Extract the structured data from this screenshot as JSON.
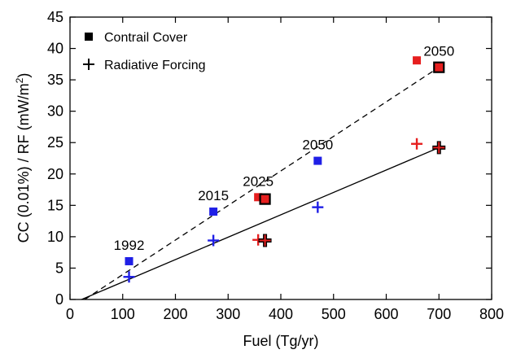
{
  "chart_data": {
    "type": "scatter",
    "xlabel": "Fuel (Tg/yr)",
    "ylabel": "CC (0.01%) / RF (mW/m",
    "ylabel_sup": "2",
    "ylabel_end": ")",
    "xlim": [
      0,
      800
    ],
    "ylim": [
      0,
      45
    ],
    "xticks": [
      0,
      100,
      200,
      300,
      400,
      500,
      600,
      700,
      800
    ],
    "yticks": [
      0,
      5,
      10,
      15,
      20,
      25,
      30,
      35,
      40,
      45
    ],
    "legend": {
      "position": "top-left",
      "entries": [
        {
          "label": "Contrail Cover",
          "marker": "square"
        },
        {
          "label": "Radiative Forcing",
          "marker": "plus"
        }
      ]
    },
    "colors": {
      "blue": "#1f1fe6",
      "red": "#e61f1f",
      "dark": "#000000"
    },
    "series": [
      {
        "marker": "square",
        "color": "blue",
        "points": [
          [
            112,
            6.1
          ],
          [
            272,
            14.0
          ],
          [
            470,
            22.1
          ]
        ]
      },
      {
        "marker": "square",
        "color": "red",
        "points": [
          [
            357,
            16.3
          ],
          [
            658,
            38.1
          ]
        ]
      },
      {
        "marker": "square-outlined",
        "color": "red",
        "points": [
          [
            370,
            16.0
          ],
          [
            700,
            37.0
          ]
        ]
      },
      {
        "marker": "plus",
        "color": "blue",
        "points": [
          [
            112,
            3.6
          ],
          [
            272,
            9.4
          ],
          [
            470,
            14.7
          ]
        ]
      },
      {
        "marker": "plus",
        "color": "red",
        "points": [
          [
            357,
            9.5
          ],
          [
            658,
            24.8
          ]
        ]
      },
      {
        "marker": "plus-outlined",
        "color": "red",
        "points": [
          [
            370,
            9.4
          ],
          [
            700,
            24.2
          ]
        ]
      }
    ],
    "fit_lines": [
      {
        "style": "dashed",
        "points": [
          [
            28,
            0
          ],
          [
            700,
            37.0
          ]
        ]
      },
      {
        "style": "solid",
        "points": [
          [
            22,
            0
          ],
          [
            700,
            24.2
          ]
        ]
      }
    ],
    "annotations": [
      {
        "text": "1992",
        "x": 112,
        "y": 6.1
      },
      {
        "text": "2015",
        "x": 272,
        "y": 14.0
      },
      {
        "text": "2025",
        "x": 357,
        "y": 16.3
      },
      {
        "text": "2050",
        "x": 470,
        "y": 22.1
      },
      {
        "text": "2050",
        "x": 700,
        "y": 37.0
      }
    ]
  }
}
